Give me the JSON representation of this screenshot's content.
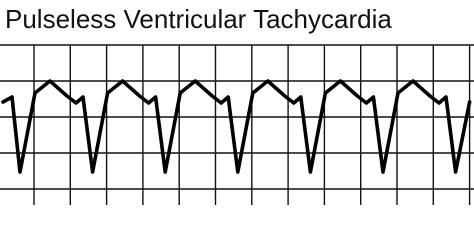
{
  "header": {
    "title": "Pulseless Ventricular Tachycardia"
  }
}
